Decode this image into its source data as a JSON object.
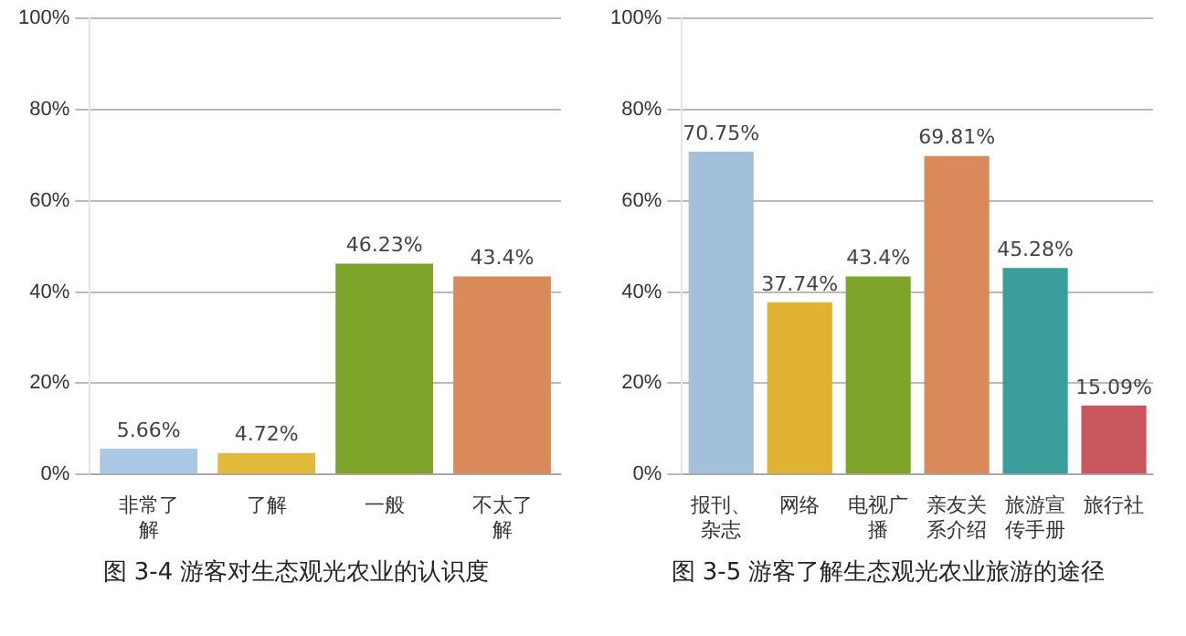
{
  "chart_data": [
    {
      "type": "bar",
      "title": "图 3-4 游客对生态观光农业的认识度",
      "categories": [
        "非常了解",
        "了解",
        "一般",
        "不太了解"
      ],
      "values": [
        5.66,
        4.72,
        46.23,
        43.4
      ],
      "colors": [
        "#a9c8e4",
        "#e3b93c",
        "#7ea52a",
        "#d9895a"
      ],
      "value_labels": [
        "5.66%",
        "4.72%",
        "46.23%",
        "43.4%"
      ],
      "ylim": [
        0,
        100
      ],
      "yticks": [
        {
          "value": 0,
          "label": "0%"
        },
        {
          "value": 20,
          "label": "20%"
        },
        {
          "value": 40,
          "label": "40%"
        },
        {
          "value": 60,
          "label": "60%"
        },
        {
          "value": 80,
          "label": "80%"
        },
        {
          "value": 100,
          "label": "100%"
        }
      ],
      "grid": "y"
    },
    {
      "type": "bar",
      "title": "图 3-5 游客了解生态观光农业旅游的途径",
      "categories": [
        "报刊、杂志",
        "网络",
        "电视广播",
        "亲友关系介绍",
        "旅游宣传手册",
        "旅行社"
      ],
      "values": [
        70.75,
        37.74,
        43.4,
        69.81,
        45.28,
        15.09
      ],
      "colors": [
        "#a3c0da",
        "#e0b232",
        "#7ea52a",
        "#d9895a",
        "#3a9e9c",
        "#c9565f"
      ],
      "value_labels": [
        "70.75%",
        "37.74%",
        "43.4%",
        "69.81%",
        "45.28%",
        "15.09%"
      ],
      "ylim": [
        0,
        100
      ],
      "yticks": [
        {
          "value": 0,
          "label": "0%"
        },
        {
          "value": 20,
          "label": "20%"
        },
        {
          "value": 40,
          "label": "40%"
        },
        {
          "value": 60,
          "label": "60%"
        },
        {
          "value": 80,
          "label": "80%"
        },
        {
          "value": 100,
          "label": "100%"
        }
      ],
      "grid": "y"
    }
  ]
}
